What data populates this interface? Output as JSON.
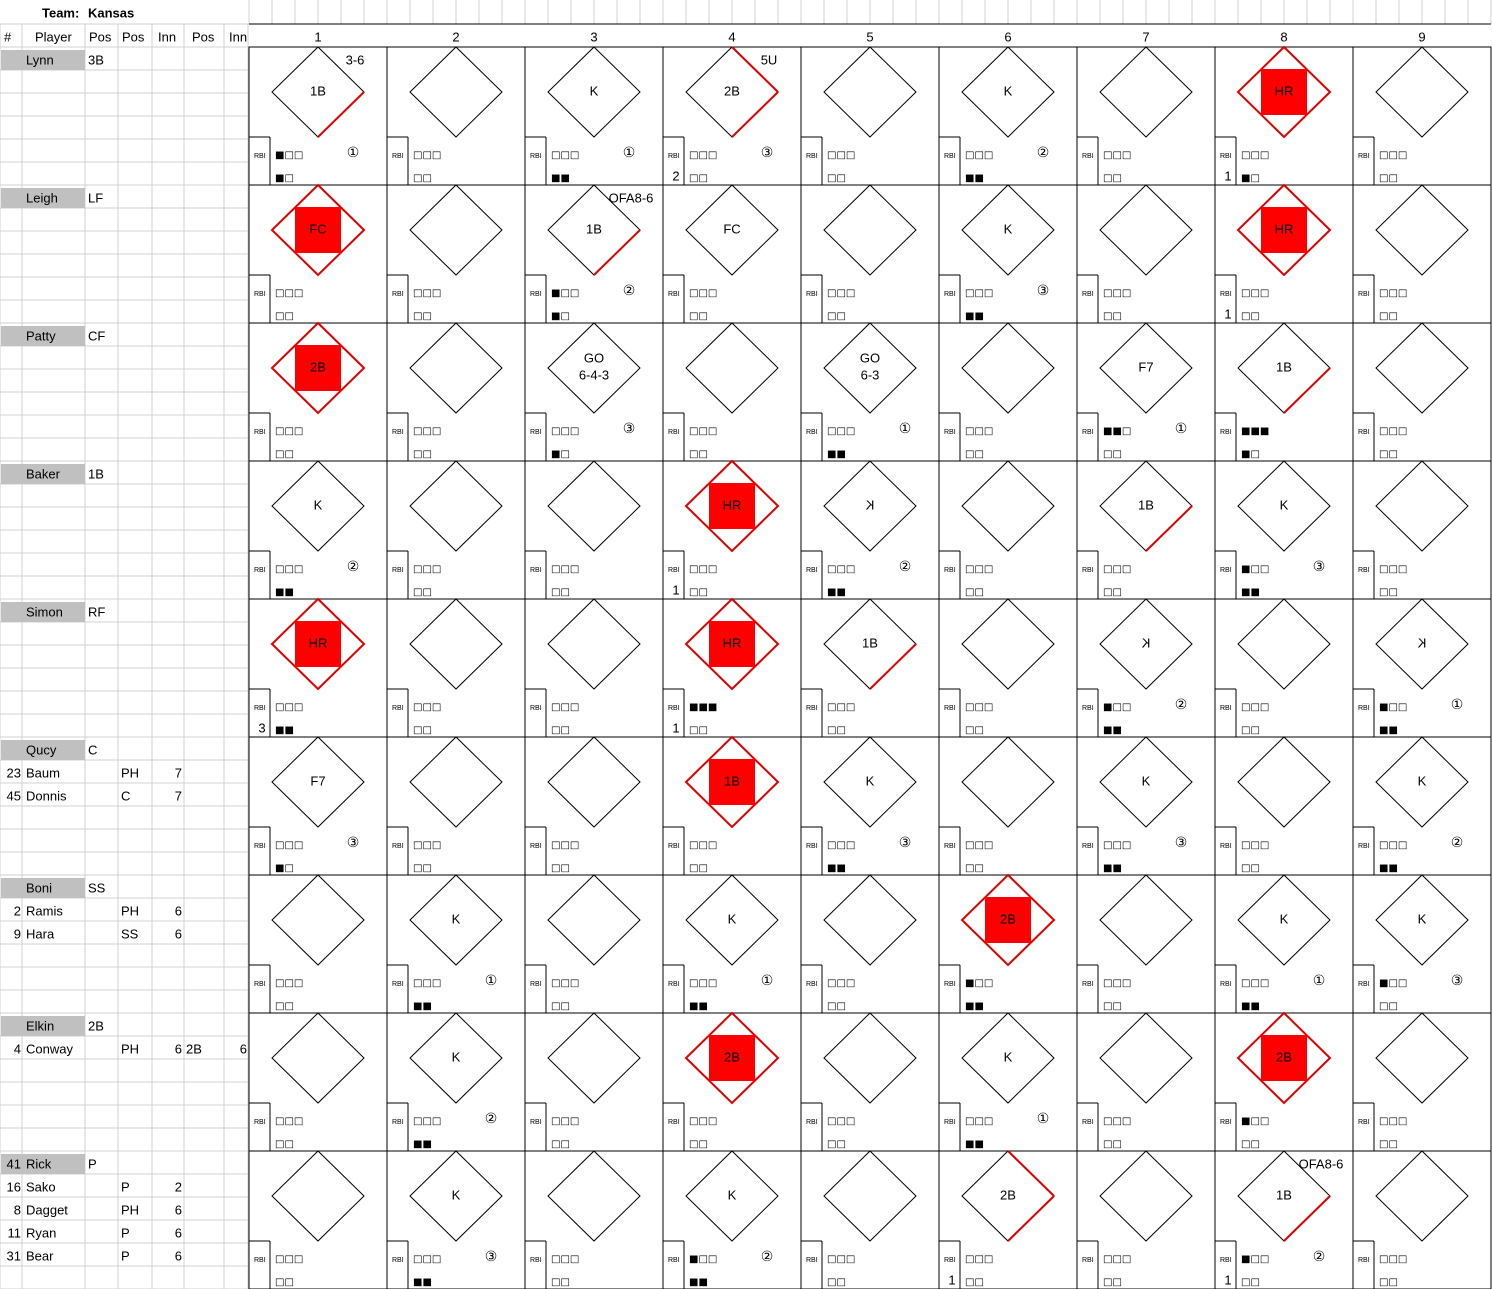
{
  "team_label": "Team:",
  "team": "Kansas",
  "rbi_label": "RBI",
  "columns": [
    "#",
    "Player",
    "Pos",
    "Pos",
    "Inn",
    "Pos",
    "Inn"
  ],
  "innings": [
    1,
    2,
    3,
    4,
    5,
    6,
    7,
    8,
    9
  ],
  "rows": [
    {
      "starter": {
        "name": "Lynn",
        "pos": "3B"
      },
      "subs": [],
      "cells": [
        {
          "result": "1B",
          "note": "3-6",
          "bases": 1,
          "balls": "■□□",
          "strikes": "■□",
          "out": "①"
        },
        {
          "balls": "□□□",
          "strikes": "□□"
        },
        {
          "result": "K",
          "balls": "□□□",
          "strikes": "■■",
          "out": "①"
        },
        {
          "result": "2B",
          "note": "5U",
          "bases": 2,
          "balls": "□□□",
          "strikes": "□□",
          "out": "③",
          "rbi": 2
        },
        {
          "balls": "□□□",
          "strikes": "□□"
        },
        {
          "result": "K",
          "balls": "□□□",
          "strikes": "■■",
          "out": "②"
        },
        {
          "balls": "□□□",
          "strikes": "□□"
        },
        {
          "result": "HR",
          "scored": true,
          "balls": "□□□",
          "strikes": "■□",
          "rbi": 1
        },
        {
          "balls": "□□□",
          "strikes": "□□"
        }
      ]
    },
    {
      "starter": {
        "name": "Leigh",
        "pos": "LF"
      },
      "subs": [],
      "cells": [
        {
          "result": "FC",
          "scored": true,
          "balls": "□□□",
          "strikes": "□□"
        },
        {
          "balls": "□□□",
          "strikes": "□□"
        },
        {
          "result": "1B",
          "note": "OFA8-6",
          "bases": 1,
          "balls": "■□□",
          "strikes": "■□",
          "out": "②"
        },
        {
          "result": "FC",
          "balls": "□□□",
          "strikes": "□□"
        },
        {
          "balls": "□□□",
          "strikes": "□□"
        },
        {
          "result": "K",
          "balls": "□□□",
          "strikes": "■■",
          "out": "③"
        },
        {
          "balls": "□□□",
          "strikes": "□□"
        },
        {
          "result": "HR",
          "scored": true,
          "balls": "□□□",
          "strikes": "□□",
          "rbi": 1
        },
        {
          "balls": "□□□",
          "strikes": "□□"
        }
      ]
    },
    {
      "starter": {
        "name": "Patty",
        "pos": "CF"
      },
      "subs": [],
      "cells": [
        {
          "result": "2B",
          "scored": true,
          "balls": "□□□",
          "strikes": "□□"
        },
        {
          "balls": "□□□",
          "strikes": "□□"
        },
        {
          "result": "GO",
          "detail": "6-4-3",
          "balls": "□□□",
          "strikes": "■□",
          "out": "③"
        },
        {
          "balls": "□□□",
          "strikes": "□□"
        },
        {
          "result": "GO",
          "detail": "6-3",
          "balls": "□□□",
          "strikes": "■■",
          "out": "①"
        },
        {
          "balls": "□□□",
          "strikes": "□□"
        },
        {
          "result": "F7",
          "balls": "■■□",
          "strikes": "□□",
          "out": "①"
        },
        {
          "result": "1B",
          "bases": 1,
          "balls": "■■■",
          "strikes": "■□"
        },
        {
          "balls": "□□□",
          "strikes": "□□"
        }
      ]
    },
    {
      "starter": {
        "name": "Baker",
        "pos": "1B"
      },
      "subs": [],
      "cells": [
        {
          "result": "K",
          "balls": "□□□",
          "strikes": "■■",
          "out": "②"
        },
        {
          "balls": "□□□",
          "strikes": "□□"
        },
        {
          "balls": "□□□",
          "strikes": "□□"
        },
        {
          "result": "HR",
          "scored": true,
          "balls": "□□□",
          "strikes": "□□",
          "rbi": 1
        },
        {
          "result": "K",
          "backward": true,
          "balls": "□□□",
          "strikes": "■■",
          "out": "②"
        },
        {
          "balls": "□□□",
          "strikes": "□□"
        },
        {
          "result": "1B",
          "bases": 1,
          "balls": "□□□",
          "strikes": "□□"
        },
        {
          "result": "K",
          "balls": "■□□",
          "strikes": "■■",
          "out": "③"
        },
        {
          "balls": "□□□",
          "strikes": "□□"
        }
      ]
    },
    {
      "starter": {
        "name": "Simon",
        "pos": "RF"
      },
      "subs": [],
      "cells": [
        {
          "result": "HR",
          "scored": true,
          "balls": "□□□",
          "strikes": "■■",
          "rbi": 3
        },
        {
          "balls": "□□□",
          "strikes": "□□"
        },
        {
          "balls": "□□□",
          "strikes": "□□"
        },
        {
          "result": "HR",
          "scored": true,
          "balls": "■■■",
          "strikes": "□□",
          "rbi": 1
        },
        {
          "result": "1B",
          "bases": 1,
          "balls": "□□□",
          "strikes": "□□"
        },
        {
          "balls": "□□□",
          "strikes": "□□"
        },
        {
          "result": "K",
          "backward": true,
          "balls": "■□□",
          "strikes": "■■",
          "out": "②"
        },
        {
          "balls": "□□□",
          "strikes": "□□"
        },
        {
          "result": "K",
          "backward": true,
          "balls": "■□□",
          "strikes": "■■",
          "out": "①"
        }
      ]
    },
    {
      "starter": {
        "name": "Qucy",
        "pos": "C"
      },
      "subs": [
        {
          "num": 23,
          "name": "Baum",
          "pos": "PH",
          "inn": 7
        },
        {
          "num": 45,
          "name": "Donnis",
          "pos": "C",
          "inn": 7
        }
      ],
      "cells": [
        {
          "result": "F7",
          "balls": "□□□",
          "strikes": "■□",
          "out": "③"
        },
        {
          "balls": "□□□",
          "strikes": "□□"
        },
        {
          "balls": "□□□",
          "strikes": "□□"
        },
        {
          "result": "1B",
          "scored": true,
          "balls": "□□□",
          "strikes": "□□"
        },
        {
          "result": "K",
          "balls": "□□□",
          "strikes": "■■",
          "out": "③"
        },
        {
          "balls": "□□□",
          "strikes": "□□"
        },
        {
          "result": "K",
          "balls": "□□□",
          "strikes": "■■",
          "out": "③"
        },
        {
          "balls": "□□□",
          "strikes": "□□"
        },
        {
          "result": "K",
          "balls": "□□□",
          "strikes": "■■",
          "out": "②"
        }
      ]
    },
    {
      "starter": {
        "name": "Boni",
        "pos": "SS"
      },
      "subs": [
        {
          "num": 2,
          "name": "Ramis",
          "pos": "PH",
          "inn": 6
        },
        {
          "num": 9,
          "name": "Hara",
          "pos": "SS",
          "inn": 6
        }
      ],
      "cells": [
        {
          "balls": "□□□",
          "strikes": "□□"
        },
        {
          "result": "K",
          "balls": "□□□",
          "strikes": "■■",
          "out": "①"
        },
        {
          "balls": "□□□",
          "strikes": "□□"
        },
        {
          "result": "K",
          "balls": "□□□",
          "strikes": "■■",
          "out": "①"
        },
        {
          "balls": "□□□",
          "strikes": "□□"
        },
        {
          "result": "2B",
          "scored": true,
          "balls": "■□□",
          "strikes": "■■"
        },
        {
          "balls": "□□□",
          "strikes": "□□"
        },
        {
          "result": "K",
          "balls": "□□□",
          "strikes": "■■",
          "out": "①"
        },
        {
          "result": "K",
          "balls": "■□□",
          "strikes": "□□",
          "out": "③"
        }
      ]
    },
    {
      "starter": {
        "name": "Elkin",
        "pos": "2B"
      },
      "subs": [
        {
          "num": 4,
          "name": "Conway",
          "pos": "PH",
          "inn": 6,
          "pos2": "2B",
          "inn2": 6
        }
      ],
      "cells": [
        {
          "balls": "□□□",
          "strikes": "□□"
        },
        {
          "result": "K",
          "balls": "□□□",
          "strikes": "■■",
          "out": "②"
        },
        {
          "balls": "□□□",
          "strikes": "□□"
        },
        {
          "result": "2B",
          "scored": true,
          "balls": "□□□",
          "strikes": "□□"
        },
        {
          "balls": "□□□",
          "strikes": "□□"
        },
        {
          "result": "K",
          "balls": "□□□",
          "strikes": "■■",
          "out": "①"
        },
        {
          "balls": "□□□",
          "strikes": "□□"
        },
        {
          "result": "2B",
          "scored": true,
          "balls": "■□□",
          "strikes": "□□"
        },
        {
          "balls": "□□□",
          "strikes": "□□"
        }
      ]
    },
    {
      "starter": {
        "num": 41,
        "name": "Rick",
        "pos": "P"
      },
      "subs": [
        {
          "num": 16,
          "name": "Sako",
          "pos": "P",
          "inn": 2
        },
        {
          "num": 8,
          "name": "Dagget",
          "pos": "PH",
          "inn": 6
        },
        {
          "num": 11,
          "name": "Ryan",
          "pos": "P",
          "inn": 6
        },
        {
          "num": 31,
          "name": "Bear",
          "pos": "P",
          "inn": 6
        }
      ],
      "cells": [
        {
          "balls": "□□□",
          "strikes": "□□"
        },
        {
          "result": "K",
          "balls": "□□□",
          "strikes": "■■",
          "out": "③"
        },
        {
          "balls": "□□□",
          "strikes": "□□"
        },
        {
          "result": "K",
          "balls": "■□□",
          "strikes": "■■",
          "out": "②"
        },
        {
          "balls": "□□□",
          "strikes": "□□"
        },
        {
          "result": "2B",
          "bases": 2,
          "balls": "□□□",
          "strikes": "□□",
          "rbi": 1
        },
        {
          "balls": "□□□",
          "strikes": "□□"
        },
        {
          "result": "1B",
          "note": "OFA8-6",
          "bases": 1,
          "balls": "■□□",
          "strikes": "□□",
          "out": "②",
          "rbi": 1
        },
        {
          "balls": "□□□",
          "strikes": "□□"
        }
      ]
    }
  ]
}
